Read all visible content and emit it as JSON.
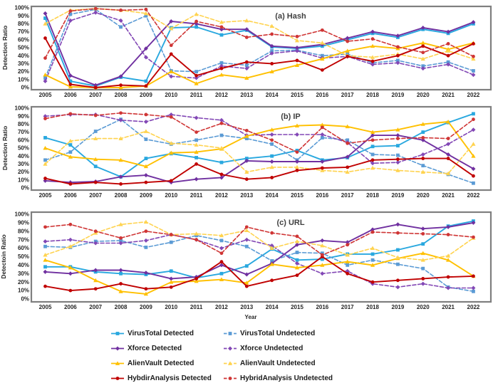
{
  "figure": {
    "background": "#ffffff",
    "frame_color": "#7f7f7f",
    "tick_color": "#262626",
    "title_color": "#404040",
    "x_axis_title": "Year",
    "legend": {
      "items": [
        {
          "key": "virustotal-detected",
          "label": "VirusTotal Detected",
          "color": "#29A8DF",
          "dash": false,
          "marker": "square",
          "col": 0
        },
        {
          "key": "virustotal-undetected",
          "label": "VirusTotal Undetected",
          "color": "#5B9BD5",
          "dash": true,
          "marker": "square",
          "col": 1
        },
        {
          "key": "xforce-detected",
          "label": "Xforce Detected",
          "color": "#7030A0",
          "dash": false,
          "marker": "diamond",
          "col": 0
        },
        {
          "key": "xforce-undetected",
          "label": "Xforce Undetected",
          "color": "#8247B5",
          "dash": true,
          "marker": "diamond",
          "col": 1
        },
        {
          "key": "alienvault-detected",
          "label": "AlienVault Detected",
          "color": "#FFC000",
          "dash": false,
          "marker": "triangle",
          "col": 0
        },
        {
          "key": "alienvault-undetected",
          "label": "AlienVault Undetected",
          "color": "#FFD34F",
          "dash": true,
          "marker": "triangle",
          "col": 1
        },
        {
          "key": "hybridanalysis-detected",
          "label": "HybdirAnalysis Detected",
          "color": "#C00000",
          "dash": false,
          "marker": "circle",
          "col": 0
        },
        {
          "key": "hybridanalysis-undetected",
          "label": "HybridAnalysis Undetected",
          "color": "#CF3535",
          "dash": true,
          "marker": "circle",
          "col": 1
        }
      ]
    }
  },
  "chart_data": [
    {
      "type": "line",
      "title": "(a) Hash",
      "ylabel": "Detection Ratio",
      "xlabel": "",
      "ylim": [
        0,
        100
      ],
      "ytick_step": 10,
      "ytick_suffix": "%",
      "grid": false,
      "x": [
        2005,
        2006,
        2007,
        2008,
        2009,
        2010,
        2011,
        2012,
        2013,
        2014,
        2015,
        2016,
        2017,
        2018,
        2019,
        2020,
        2021,
        2022
      ],
      "series": [
        {
          "name": "VirusTotal Detected",
          "color": "#29A8DF",
          "dash": false,
          "marker": "square",
          "values": [
            87,
            8,
            2,
            13,
            8,
            75,
            76,
            66,
            72,
            51,
            49,
            52,
            60,
            68,
            63,
            73,
            68,
            80
          ]
        },
        {
          "name": "VirusTotal Undetected",
          "color": "#5B9BD5",
          "dash": true,
          "marker": "square",
          "values": [
            12,
            92,
            98,
            76,
            90,
            21,
            20,
            31,
            28,
            46,
            47,
            40,
            42,
            31,
            34,
            27,
            32,
            21
          ]
        },
        {
          "name": "Xforce Detected",
          "color": "#7030A0",
          "dash": false,
          "marker": "diamond",
          "values": [
            93,
            15,
            3,
            14,
            49,
            83,
            80,
            73,
            73,
            52,
            50,
            54,
            62,
            70,
            65,
            75,
            70,
            82
          ]
        },
        {
          "name": "Xforce Undetected",
          "color": "#8247B5",
          "dash": true,
          "marker": "diamond",
          "values": [
            8,
            84,
            94,
            84,
            38,
            14,
            12,
            27,
            24,
            43,
            46,
            37,
            39,
            29,
            31,
            24,
            29,
            16
          ]
        },
        {
          "name": "AlienVault Detected",
          "color": "#FFC000",
          "dash": false,
          "marker": "triangle",
          "values": [
            16,
            1,
            0,
            0,
            2,
            20,
            5,
            16,
            12,
            20,
            28,
            36,
            46,
            52,
            49,
            56,
            48,
            56
          ]
        },
        {
          "name": "AlienVault Undetected",
          "color": "#FFD34F",
          "dash": true,
          "marker": "triangle",
          "values": [
            80,
            97,
            99,
            97,
            93,
            74,
            92,
            82,
            84,
            77,
            59,
            56,
            40,
            38,
            42,
            36,
            46,
            36
          ]
        },
        {
          "name": "HybdirAnalysis Detected",
          "color": "#C00000",
          "dash": false,
          "marker": "circle",
          "values": [
            62,
            4,
            0,
            3,
            2,
            42,
            15,
            24,
            32,
            30,
            34,
            22,
            39,
            33,
            40,
            52,
            40,
            55
          ]
        },
        {
          "name": "HybridAnalysis Undetected",
          "color": "#CF3535",
          "dash": true,
          "marker": "circle",
          "values": [
            37,
            96,
            99,
            97,
            98,
            53,
            83,
            76,
            63,
            67,
            64,
            72,
            58,
            61,
            51,
            44,
            55,
            39
          ]
        }
      ]
    },
    {
      "type": "line",
      "title": "(b) IP",
      "ylabel": "Detection Ratio",
      "xlabel": "",
      "ylim": [
        0,
        100
      ],
      "ytick_step": 10,
      "ytick_suffix": "%",
      "grid": false,
      "x": [
        2005,
        2006,
        2007,
        2008,
        2009,
        2010,
        2011,
        2012,
        2013,
        2014,
        2015,
        2016,
        2017,
        2018,
        2019,
        2020,
        2021,
        2022
      ],
      "series": [
        {
          "name": "VirusTotal Detected",
          "color": "#29A8DF",
          "dash": false,
          "marker": "square",
          "values": [
            63,
            54,
            27,
            14,
            37,
            43,
            38,
            32,
            37,
            40,
            47,
            35,
            38,
            52,
            53,
            70,
            82,
            93
          ]
        },
        {
          "name": "VirusTotal Undetected",
          "color": "#5B9BD5",
          "dash": true,
          "marker": "square",
          "values": [
            35,
            45,
            71,
            86,
            61,
            55,
            60,
            66,
            62,
            55,
            35,
            63,
            60,
            42,
            41,
            28,
            17,
            6
          ]
        },
        {
          "name": "Xforce Detected",
          "color": "#7030A0",
          "dash": false,
          "marker": "diamond",
          "values": [
            9,
            7,
            8,
            14,
            16,
            7,
            11,
            13,
            34,
            33,
            33,
            33,
            39,
            66,
            66,
            60,
            42,
            24
          ]
        },
        {
          "name": "Xforce Undetected",
          "color": "#8247B5",
          "dash": true,
          "marker": "diamond",
          "values": [
            90,
            92,
            92,
            85,
            83,
            92,
            88,
            85,
            66,
            67,
            67,
            67,
            57,
            31,
            32,
            42,
            55,
            73
          ]
        },
        {
          "name": "AlienVault Detected",
          "color": "#FFC000",
          "dash": false,
          "marker": "triangle",
          "values": [
            50,
            39,
            36,
            35,
            27,
            44,
            45,
            49,
            65,
            73,
            78,
            79,
            77,
            70,
            73,
            80,
            83,
            40
          ]
        },
        {
          "name": "AlienVault Undetected",
          "color": "#FFD34F",
          "dash": true,
          "marker": "triangle",
          "values": [
            30,
            59,
            62,
            62,
            71,
            56,
            54,
            50,
            20,
            26,
            26,
            22,
            20,
            25,
            22,
            20,
            18,
            55
          ]
        },
        {
          "name": "HybdirAnalysis Detected",
          "color": "#C00000",
          "dash": false,
          "marker": "circle",
          "values": [
            12,
            5,
            7,
            5,
            7,
            9,
            30,
            17,
            11,
            13,
            22,
            25,
            26,
            35,
            36,
            37,
            37,
            15
          ]
        },
        {
          "name": "HybridAnalysis Undetected",
          "color": "#CF3535",
          "dash": true,
          "marker": "circle",
          "values": [
            87,
            93,
            91,
            94,
            92,
            89,
            70,
            81,
            72,
            60,
            45,
            76,
            56,
            60,
            62,
            63,
            62,
            86
          ]
        }
      ]
    },
    {
      "type": "line",
      "title": "(c) URL",
      "ylabel": "Detectoin Ratio",
      "xlabel": "Year",
      "ylim": [
        0,
        100
      ],
      "ytick_step": 10,
      "ytick_suffix": "%",
      "grid": false,
      "x": [
        2005,
        2006,
        2007,
        2008,
        2009,
        2010,
        2011,
        2012,
        2013,
        2014,
        2015,
        2016,
        2017,
        2018,
        2019,
        2020,
        2021,
        2022
      ],
      "series": [
        {
          "name": "VirusTotal Detected",
          "color": "#29A8DF",
          "dash": false,
          "marker": "square",
          "values": [
            38,
            38,
            32,
            30,
            29,
            33,
            25,
            30,
            39,
            59,
            46,
            47,
            53,
            53,
            58,
            65,
            86,
            92
          ]
        },
        {
          "name": "VirusTotal Undetected",
          "color": "#5B9BD5",
          "dash": true,
          "marker": "square",
          "values": [
            62,
            61,
            68,
            69,
            61,
            67,
            75,
            69,
            62,
            45,
            55,
            54,
            40,
            46,
            41,
            36,
            14,
            9
          ]
        },
        {
          "name": "Xforce Detected",
          "color": "#7030A0",
          "dash": false,
          "marker": "diamond",
          "values": [
            32,
            30,
            34,
            34,
            31,
            24,
            26,
            40,
            29,
            42,
            64,
            69,
            67,
            82,
            88,
            83,
            85,
            90
          ]
        },
        {
          "name": "Xforce Undetected",
          "color": "#8247B5",
          "dash": true,
          "marker": "diamond",
          "values": [
            68,
            70,
            66,
            66,
            69,
            76,
            70,
            60,
            70,
            63,
            42,
            30,
            33,
            18,
            14,
            18,
            13,
            13
          ]
        },
        {
          "name": "AlienVault Detected",
          "color": "#FFC000",
          "dash": false,
          "marker": "triangle",
          "values": [
            46,
            37,
            22,
            9,
            6,
            20,
            21,
            23,
            19,
            41,
            37,
            40,
            44,
            40,
            48,
            54,
            46,
            27
          ]
        },
        {
          "name": "AlienVault Undetected",
          "color": "#FFD34F",
          "dash": true,
          "marker": "triangle",
          "values": [
            52,
            62,
            78,
            88,
            91,
            76,
            77,
            75,
            81,
            60,
            68,
            63,
            52,
            60,
            49,
            46,
            51,
            72
          ]
        },
        {
          "name": "HybdirAnalysis Detected",
          "color": "#C00000",
          "dash": false,
          "marker": "circle",
          "values": [
            15,
            10,
            12,
            18,
            12,
            14,
            24,
            44,
            15,
            22,
            28,
            50,
            30,
            20,
            22,
            24,
            26,
            27
          ]
        },
        {
          "name": "HybridAnalysis Undetected",
          "color": "#CF3535",
          "dash": true,
          "marker": "circle",
          "values": [
            85,
            88,
            80,
            72,
            80,
            76,
            70,
            54,
            85,
            78,
            74,
            52,
            64,
            79,
            78,
            77,
            76,
            73
          ]
        }
      ]
    }
  ]
}
